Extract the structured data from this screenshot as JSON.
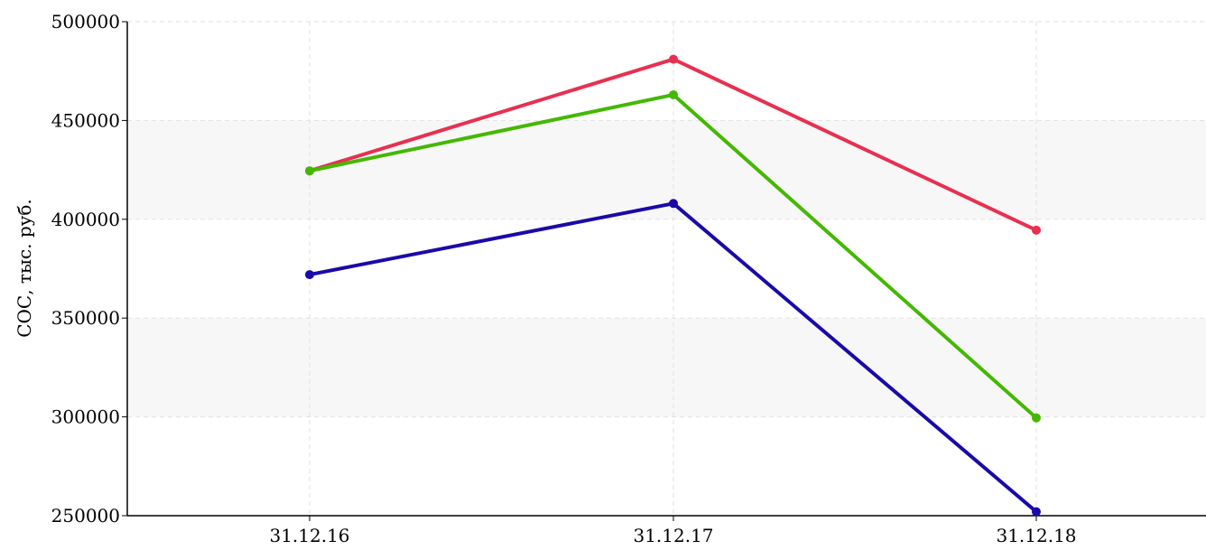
{
  "chart_data": {
    "type": "line",
    "title": "",
    "xlabel": "",
    "ylabel": "СОС, тыс. руб.",
    "categories": [
      "31.12.16",
      "31.12.17",
      "31.12.18"
    ],
    "ylim": [
      250000,
      500000
    ],
    "yticks": [
      "250000",
      "300000",
      "350000",
      "400000",
      "450000",
      "500000"
    ],
    "grid": true,
    "legend": "none",
    "series": [
      {
        "color": "#e8304f",
        "values": [
          424500,
          481000,
          394500
        ]
      },
      {
        "color": "#44b800",
        "values": [
          424500,
          463000,
          299500
        ]
      },
      {
        "color": "#1a0aa8",
        "values": [
          372000,
          408000,
          252000
        ]
      }
    ]
  }
}
